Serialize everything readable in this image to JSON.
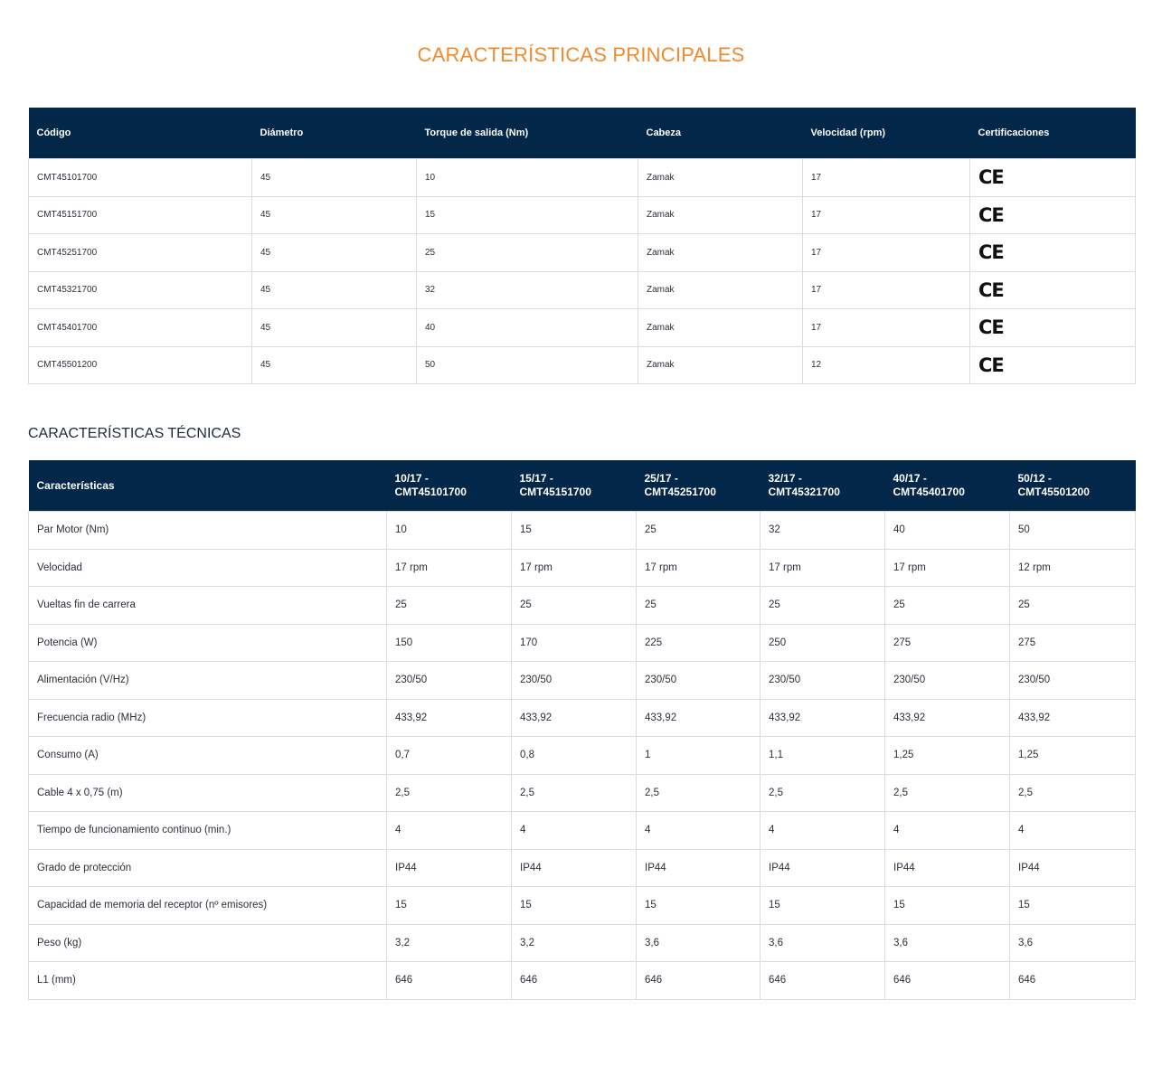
{
  "main_title": "CARACTERÍSTICAS PRINCIPALES",
  "main_table": {
    "headers": [
      "Código",
      "Diámetro",
      "Torque de salida (Nm)",
      "Cabeza",
      "Velocidad (rpm)",
      "Certificaciones"
    ],
    "rows": [
      [
        "CMT45101700",
        "45",
        "10",
        "Zamak",
        "17",
        "CE"
      ],
      [
        "CMT45151700",
        "45",
        "15",
        "Zamak",
        "17",
        "CE"
      ],
      [
        "CMT45251700",
        "45",
        "25",
        "Zamak",
        "17",
        "CE"
      ],
      [
        "CMT45321700",
        "45",
        "32",
        "Zamak",
        "17",
        "CE"
      ],
      [
        "CMT45401700",
        "45",
        "40",
        "Zamak",
        "17",
        "CE"
      ],
      [
        "CMT45501200",
        "45",
        "50",
        "Zamak",
        "12",
        "CE"
      ]
    ]
  },
  "tech_title": "CARACTERÍSTICAS TÉCNICAS",
  "tech_table": {
    "headers": [
      [
        "Características"
      ],
      [
        "10/17 -",
        "CMT45101700"
      ],
      [
        "15/17 -",
        "CMT45151700"
      ],
      [
        "25/17 -",
        "CMT45251700"
      ],
      [
        "32/17 -",
        "CMT45321700"
      ],
      [
        "40/17 -",
        "CMT45401700"
      ],
      [
        "50/12 -",
        "CMT45501200"
      ]
    ],
    "rows": [
      [
        "Par Motor (Nm)",
        "10",
        "15",
        "25",
        "32",
        "40",
        "50"
      ],
      [
        "Velocidad",
        "17 rpm",
        "17 rpm",
        "17 rpm",
        "17 rpm",
        "17 rpm",
        "12 rpm"
      ],
      [
        "Vueltas fin de carrera",
        "25",
        "25",
        "25",
        "25",
        "25",
        "25"
      ],
      [
        "Potencia (W)",
        "150",
        "170",
        "225",
        "250",
        "275",
        "275"
      ],
      [
        "Alimentación (V/Hz)",
        "230/50",
        "230/50",
        "230/50",
        "230/50",
        "230/50",
        "230/50"
      ],
      [
        "Frecuencia radio (MHz)",
        "433,92",
        "433,92",
        "433,92",
        "433,92",
        "433,92",
        "433,92"
      ],
      [
        "Consumo (A)",
        "0,7",
        "0,8",
        "1",
        "1,1",
        "1,25",
        "1,25"
      ],
      [
        "Cable 4 x 0,75 (m)",
        "2,5",
        "2,5",
        "2,5",
        "2,5",
        "2,5",
        "2,5"
      ],
      [
        "Tiempo de funcionamiento continuo (min.)",
        "4",
        "4",
        "4",
        "4",
        "4",
        "4"
      ],
      [
        "Grado de protección",
        "IP44",
        "IP44",
        "IP44",
        "IP44",
        "IP44",
        "IP44"
      ],
      [
        "Capacidad de memoria del receptor (nº emisores)",
        "15",
        "15",
        "15",
        "15",
        "15",
        "15"
      ],
      [
        "Peso (kg)",
        "3,2",
        "3,2",
        "3,6",
        "3,6",
        "3,6",
        "3,6"
      ],
      [
        "L1 (mm)",
        "646",
        "646",
        "646",
        "646",
        "646",
        "646"
      ]
    ]
  }
}
